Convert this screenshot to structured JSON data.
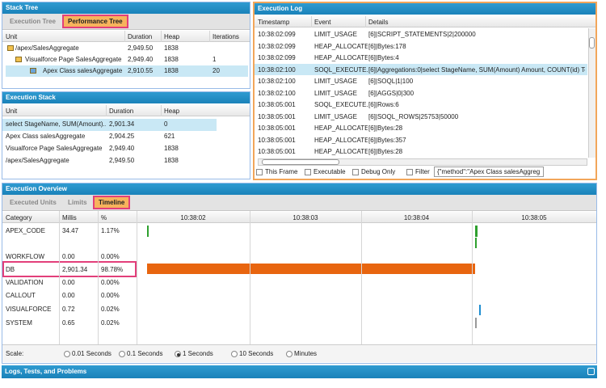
{
  "stack_tree": {
    "title": "Stack Tree",
    "tabs": [
      "Execution Tree",
      "Performance Tree"
    ],
    "columns": [
      "Unit",
      "Duration",
      "Heap",
      "Iterations"
    ],
    "rows": [
      [
        "/apex/SalesAggregate",
        "2,949.50",
        "1838"
      ],
      [
        "Visualforce Page SalesAggregate",
        "2,949.40",
        "1838",
        "1"
      ],
      [
        "Apex Class salesAggregate",
        "2,910.55",
        "1838",
        "20"
      ]
    ]
  },
  "execution_stack": {
    "title": "Execution Stack",
    "columns": [
      "Unit",
      "Duration",
      "Heap"
    ],
    "rows": [
      [
        "select StageName, SUM(Amount)...",
        "2,901.34",
        "0"
      ],
      [
        "Apex Class salesAggregate",
        "2,904.25",
        "621"
      ],
      [
        "Visualforce Page SalesAggregate",
        "2,949.40",
        "1838"
      ],
      [
        "/apex/SalesAggregate",
        "2,949.50",
        "1838"
      ]
    ]
  },
  "execution_log": {
    "title": "Execution Log",
    "columns": [
      "Timestamp",
      "Event",
      "Details"
    ],
    "rows": [
      [
        "10:38:02:099",
        "LIMIT_USAGE",
        "[6]|SCRIPT_STATEMENTS|2|200000"
      ],
      [
        "10:38:02:099",
        "HEAP_ALLOCATE",
        "[6]|Bytes:178"
      ],
      [
        "10:38:02:099",
        "HEAP_ALLOCATE",
        "[6]|Bytes:4"
      ],
      [
        "10:38:02:100",
        "SOQL_EXECUTE...",
        "[6]|Aggregations:0|select StageName, SUM(Amount) Amount, COUNT(id) Total fi"
      ],
      [
        "10:38:02:100",
        "LIMIT_USAGE",
        "[6]|SOQL|1|100"
      ],
      [
        "10:38:02:100",
        "LIMIT_USAGE",
        "[6]|AGGS|0|300"
      ],
      [
        "10:38:05:001",
        "SOQL_EXECUTE...",
        "[6]|Rows:6"
      ],
      [
        "10:38:05:001",
        "LIMIT_USAGE",
        "[6]|SOQL_ROWS|25753|50000"
      ],
      [
        "10:38:05:001",
        "HEAP_ALLOCATE",
        "[6]|Bytes:28"
      ],
      [
        "10:38:05:001",
        "HEAP_ALLOCATE",
        "[6]|Bytes:357"
      ],
      [
        "10:38:05:001",
        "HEAP_ALLOCATE",
        "[6]|Bytes:28"
      ]
    ],
    "filters": [
      "This Frame",
      "Executable",
      "Debug Only",
      "Filter"
    ],
    "filter_input": "{\"method\":\"Apex Class salesAggreg"
  },
  "execution_overview": {
    "title": "Execution Overview",
    "tabs": [
      "Executed Units",
      "Limits",
      "Timeline"
    ],
    "columns": [
      "Category",
      "Millis",
      "%"
    ],
    "rows": [
      [
        "APEX_CODE",
        "34.47",
        "1.17%"
      ],
      [
        "WORKFLOW",
        "0.00",
        "0.00%"
      ],
      [
        "DB",
        "2,901.34",
        "98.78%"
      ],
      [
        "VALIDATION",
        "0.00",
        "0.00%"
      ],
      [
        "CALLOUT",
        "0.00",
        "0.00%"
      ],
      [
        "VISUALFORCE",
        "0.72",
        "0.02%"
      ],
      [
        "SYSTEM",
        "0.65",
        "0.02%"
      ]
    ],
    "timeline_ticks": [
      "10:38:02",
      "10:38:03",
      "10:38:04",
      "10:38:05"
    ],
    "scale_label": "Scale:",
    "scale_options": [
      "0.01 Seconds",
      "0.1 Seconds",
      "1 Seconds",
      "10 Seconds",
      "Minutes"
    ]
  },
  "bottom_bar": {
    "title": "Logs, Tests, and Problems"
  }
}
